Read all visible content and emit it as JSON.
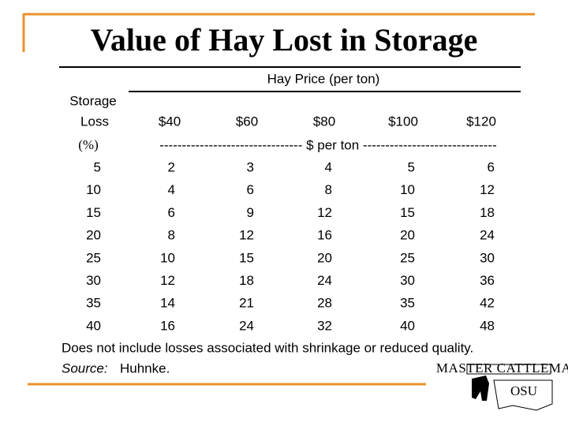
{
  "header": {
    "title": "Value of Hay Lost in Storage"
  },
  "table": {
    "group_header": "Hay Price (per ton)",
    "row_header": [
      "Storage",
      "Loss"
    ],
    "row_unit": "(%)",
    "columns": [
      "$40",
      "$60",
      "$80",
      "$100",
      "$120"
    ],
    "column_unit": "-------------------------------- $ per ton ------------------------------",
    "rows": [
      [
        5,
        2,
        3,
        4,
        5,
        6
      ],
      [
        10,
        4,
        6,
        8,
        10,
        12
      ],
      [
        15,
        6,
        9,
        12,
        15,
        18
      ],
      [
        20,
        8,
        12,
        16,
        20,
        24
      ],
      [
        25,
        10,
        15,
        20,
        25,
        30
      ],
      [
        30,
        12,
        18,
        24,
        30,
        36
      ],
      [
        35,
        14,
        21,
        28,
        35,
        42
      ],
      [
        40,
        16,
        24,
        32,
        40,
        48
      ]
    ]
  },
  "footnote": "Does not include losses associated with shrinkage or reduced quality.",
  "source": {
    "label": "Source:",
    "text": "Huhnke."
  },
  "logo": {
    "top": "MASTER CATTLEMAN",
    "mark": "OSU"
  }
}
